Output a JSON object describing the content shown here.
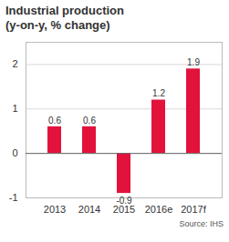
{
  "chart_data": {
    "type": "bar",
    "title": "Industrial production",
    "subtitle": "(y-on-y, % change)",
    "caption": "Source: IHS",
    "categories": [
      "2013",
      "2014",
      "2015",
      "2016e",
      "2017f"
    ],
    "values": [
      0.6,
      0.6,
      -0.9,
      1.2,
      1.9
    ],
    "color": "#e2123d",
    "ylim": [
      -1,
      2.5
    ],
    "yticks": [
      -1,
      0,
      1,
      2
    ],
    "grid": true,
    "data_labels": true
  }
}
